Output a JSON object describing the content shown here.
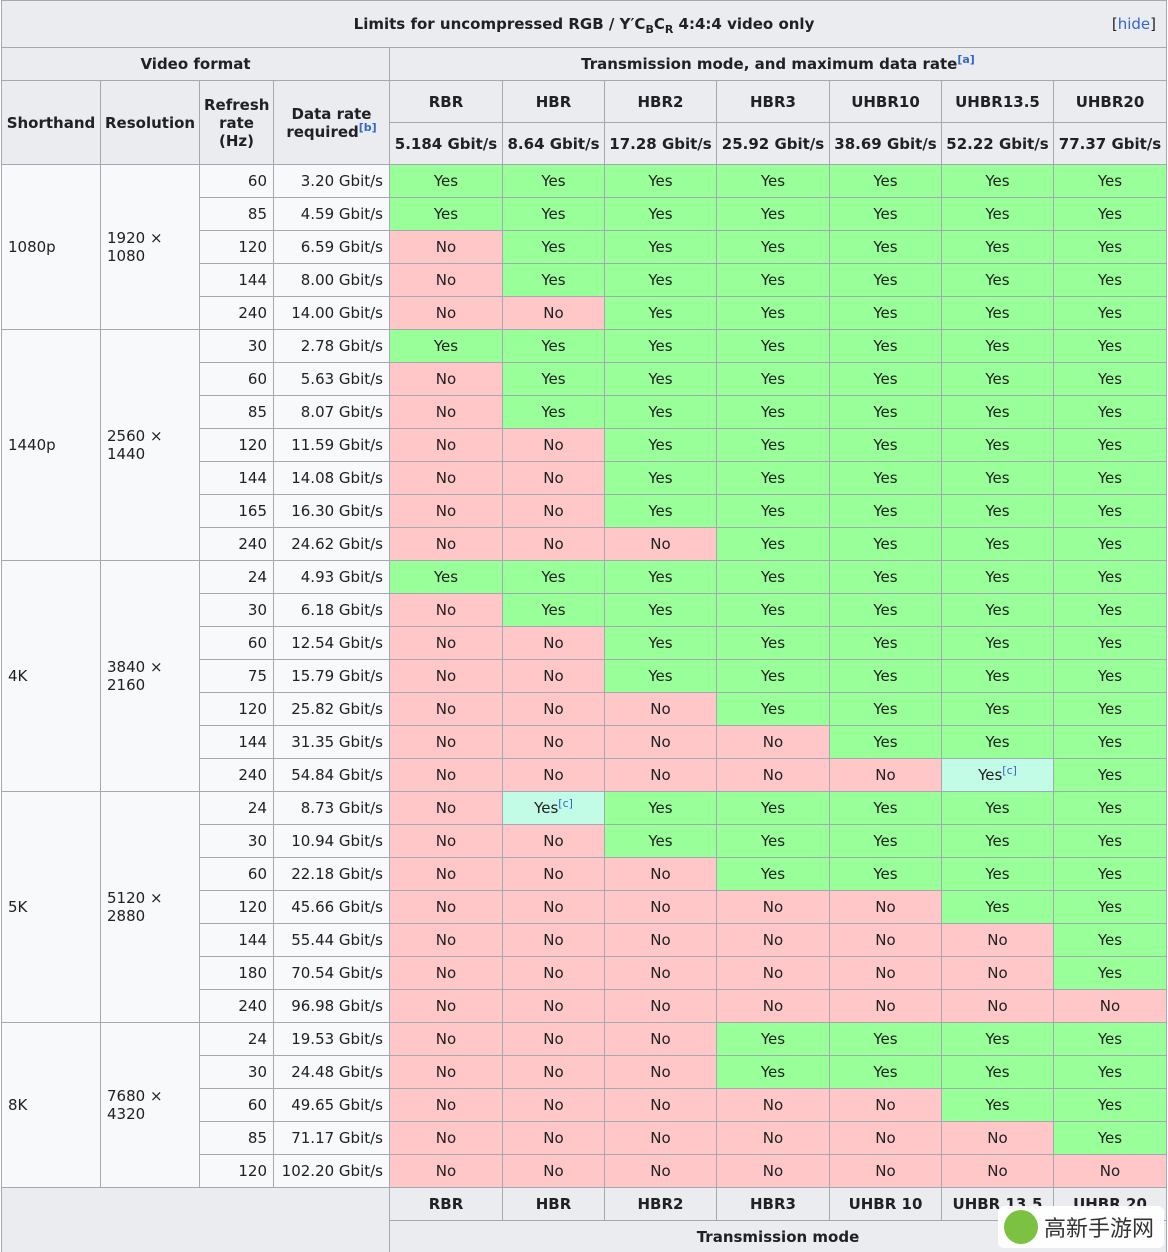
{
  "title_parts": [
    "Limits for uncompressed RGB / Y′C",
    "B",
    "C",
    "R",
    " 4:4:4 video only"
  ],
  "hide_toggle": [
    "[",
    "hide",
    "]"
  ],
  "header": {
    "video_format": "Video format",
    "transmission": "Transmission mode, and maximum data rate",
    "transmission_note": "[a]",
    "columns": [
      "Shorthand",
      "Resolution",
      "Refresh rate (Hz)",
      "Data rate required"
    ],
    "data_rate_note": "[b]"
  },
  "modes": [
    {
      "name": "RBR",
      "rate": "5.184 Gbit/s"
    },
    {
      "name": "HBR",
      "rate": "8.64 Gbit/s"
    },
    {
      "name": "HBR2",
      "rate": "17.28 Gbit/s"
    },
    {
      "name": "HBR3",
      "rate": "25.92 Gbit/s"
    },
    {
      "name": "UHBR10",
      "rate": "38.69 Gbit/s"
    },
    {
      "name": "UHBR13.5",
      "rate": "52.22 Gbit/s"
    },
    {
      "name": "UHBR20",
      "rate": "77.37 Gbit/s"
    }
  ],
  "colors": {
    "Yes": "#9f9",
    "No": "#ffc7c7",
    "partial": "#c2fbe6"
  },
  "groups": [
    {
      "shorthand": "1080p",
      "resolution": "1920 × 1080",
      "rows": [
        {
          "hz": 60,
          "rate": "3.20 Gbit/s",
          "support": [
            "Yes",
            "Yes",
            "Yes",
            "Yes",
            "Yes",
            "Yes",
            "Yes"
          ]
        },
        {
          "hz": 85,
          "rate": "4.59 Gbit/s",
          "support": [
            "Yes",
            "Yes",
            "Yes",
            "Yes",
            "Yes",
            "Yes",
            "Yes"
          ]
        },
        {
          "hz": 120,
          "rate": "6.59 Gbit/s",
          "support": [
            "No",
            "Yes",
            "Yes",
            "Yes",
            "Yes",
            "Yes",
            "Yes"
          ]
        },
        {
          "hz": 144,
          "rate": "8.00 Gbit/s",
          "support": [
            "No",
            "Yes",
            "Yes",
            "Yes",
            "Yes",
            "Yes",
            "Yes"
          ]
        },
        {
          "hz": 240,
          "rate": "14.00 Gbit/s",
          "support": [
            "No",
            "No",
            "Yes",
            "Yes",
            "Yes",
            "Yes",
            "Yes"
          ]
        }
      ]
    },
    {
      "shorthand": "1440p",
      "resolution": "2560 × 1440",
      "rows": [
        {
          "hz": 30,
          "rate": "2.78 Gbit/s",
          "support": [
            "Yes",
            "Yes",
            "Yes",
            "Yes",
            "Yes",
            "Yes",
            "Yes"
          ]
        },
        {
          "hz": 60,
          "rate": "5.63 Gbit/s",
          "support": [
            "No",
            "Yes",
            "Yes",
            "Yes",
            "Yes",
            "Yes",
            "Yes"
          ]
        },
        {
          "hz": 85,
          "rate": "8.07 Gbit/s",
          "support": [
            "No",
            "Yes",
            "Yes",
            "Yes",
            "Yes",
            "Yes",
            "Yes"
          ]
        },
        {
          "hz": 120,
          "rate": "11.59 Gbit/s",
          "support": [
            "No",
            "No",
            "Yes",
            "Yes",
            "Yes",
            "Yes",
            "Yes"
          ]
        },
        {
          "hz": 144,
          "rate": "14.08 Gbit/s",
          "support": [
            "No",
            "No",
            "Yes",
            "Yes",
            "Yes",
            "Yes",
            "Yes"
          ]
        },
        {
          "hz": 165,
          "rate": "16.30 Gbit/s",
          "support": [
            "No",
            "No",
            "Yes",
            "Yes",
            "Yes",
            "Yes",
            "Yes"
          ]
        },
        {
          "hz": 240,
          "rate": "24.62 Gbit/s",
          "support": [
            "No",
            "No",
            "No",
            "Yes",
            "Yes",
            "Yes",
            "Yes"
          ]
        }
      ]
    },
    {
      "shorthand": "4K",
      "resolution": "3840 × 2160",
      "rows": [
        {
          "hz": 24,
          "rate": "4.93 Gbit/s",
          "support": [
            "Yes",
            "Yes",
            "Yes",
            "Yes",
            "Yes",
            "Yes",
            "Yes"
          ]
        },
        {
          "hz": 30,
          "rate": "6.18 Gbit/s",
          "support": [
            "No",
            "Yes",
            "Yes",
            "Yes",
            "Yes",
            "Yes",
            "Yes"
          ]
        },
        {
          "hz": 60,
          "rate": "12.54 Gbit/s",
          "support": [
            "No",
            "No",
            "Yes",
            "Yes",
            "Yes",
            "Yes",
            "Yes"
          ]
        },
        {
          "hz": 75,
          "rate": "15.79 Gbit/s",
          "support": [
            "No",
            "No",
            "Yes",
            "Yes",
            "Yes",
            "Yes",
            "Yes"
          ]
        },
        {
          "hz": 120,
          "rate": "25.82 Gbit/s",
          "support": [
            "No",
            "No",
            "No",
            "Yes",
            "Yes",
            "Yes",
            "Yes"
          ]
        },
        {
          "hz": 144,
          "rate": "31.35 Gbit/s",
          "support": [
            "No",
            "No",
            "No",
            "No",
            "Yes",
            "Yes",
            "Yes"
          ]
        },
        {
          "hz": 240,
          "rate": "54.84 Gbit/s",
          "support": [
            "No",
            "No",
            "No",
            "No",
            "No",
            {
              "text": "Yes",
              "note": "[c]"
            },
            "Yes"
          ]
        }
      ]
    },
    {
      "shorthand": "5K",
      "resolution": "5120 × 2880",
      "rows": [
        {
          "hz": 24,
          "rate": "8.73 Gbit/s",
          "support": [
            "No",
            {
              "text": "Yes",
              "note": "[c]"
            },
            "Yes",
            "Yes",
            "Yes",
            "Yes",
            "Yes"
          ]
        },
        {
          "hz": 30,
          "rate": "10.94 Gbit/s",
          "support": [
            "No",
            "No",
            "Yes",
            "Yes",
            "Yes",
            "Yes",
            "Yes"
          ]
        },
        {
          "hz": 60,
          "rate": "22.18 Gbit/s",
          "support": [
            "No",
            "No",
            "No",
            "Yes",
            "Yes",
            "Yes",
            "Yes"
          ]
        },
        {
          "hz": 120,
          "rate": "45.66 Gbit/s",
          "support": [
            "No",
            "No",
            "No",
            "No",
            "No",
            "Yes",
            "Yes"
          ]
        },
        {
          "hz": 144,
          "rate": "55.44 Gbit/s",
          "support": [
            "No",
            "No",
            "No",
            "No",
            "No",
            "No",
            "Yes"
          ]
        },
        {
          "hz": 180,
          "rate": "70.54 Gbit/s",
          "support": [
            "No",
            "No",
            "No",
            "No",
            "No",
            "No",
            "Yes"
          ]
        },
        {
          "hz": 240,
          "rate": "96.98 Gbit/s",
          "support": [
            "No",
            "No",
            "No",
            "No",
            "No",
            "No",
            "No"
          ]
        }
      ]
    },
    {
      "shorthand": "8K",
      "resolution": "7680 × 4320",
      "rows": [
        {
          "hz": 24,
          "rate": "19.53 Gbit/s",
          "support": [
            "No",
            "No",
            "No",
            "Yes",
            "Yes",
            "Yes",
            "Yes"
          ]
        },
        {
          "hz": 30,
          "rate": "24.48 Gbit/s",
          "support": [
            "No",
            "No",
            "No",
            "Yes",
            "Yes",
            "Yes",
            "Yes"
          ]
        },
        {
          "hz": 60,
          "rate": "49.65 Gbit/s",
          "support": [
            "No",
            "No",
            "No",
            "No",
            "No",
            "Yes",
            "Yes"
          ]
        },
        {
          "hz": 85,
          "rate": "71.17 Gbit/s",
          "support": [
            "No",
            "No",
            "No",
            "No",
            "No",
            "No",
            "Yes"
          ]
        },
        {
          "hz": 120,
          "rate": "102.20 Gbit/s",
          "support": [
            "No",
            "No",
            "No",
            "No",
            "No",
            "No",
            "No"
          ]
        }
      ]
    }
  ],
  "footer_modes": [
    "RBR",
    "HBR",
    "HBR2",
    "HBR3",
    "UHBR 10",
    "UHBR 13.5",
    "UHBR 20"
  ],
  "footer_label": "Transmission mode",
  "watermark": "高新手游网"
}
